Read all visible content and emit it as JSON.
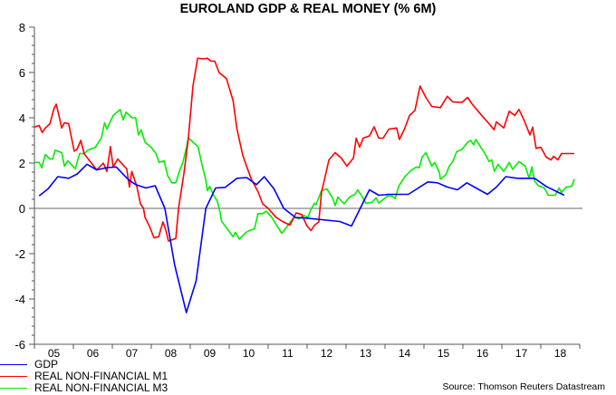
{
  "chart_data": {
    "type": "line",
    "title": "EUROLAND GDP & REAL MONEY (% 6M)",
    "xlabel": "",
    "ylabel": "",
    "ylim": [
      -6,
      8
    ],
    "xlim": [
      2005,
      2019
    ],
    "yticks": [
      "8",
      "6",
      "4",
      "2",
      "0",
      "-2",
      "-4",
      "-6"
    ],
    "ytick_values": [
      8,
      6,
      4,
      2,
      0,
      -2,
      -4,
      -6
    ],
    "xtick_labels": [
      "05",
      "06",
      "07",
      "08",
      "09",
      "10",
      "11",
      "12",
      "13",
      "14",
      "15",
      "16",
      "17",
      "18"
    ],
    "grid": false,
    "zero_line": true,
    "legend_position": "bottom-left",
    "source": "Source: Thomson Reuters Datastream",
    "series": [
      {
        "name": "GDP",
        "color": "#0000ff",
        "x": [
          2005.12,
          2005.35,
          2005.6,
          2005.88,
          2006.1,
          2006.35,
          2006.6,
          2006.86,
          2007.1,
          2007.4,
          2007.6,
          2007.86,
          2008.1,
          2008.35,
          2008.6,
          2008.9,
          2009.15,
          2009.4,
          2009.65,
          2009.9,
          2010.2,
          2010.45,
          2010.7,
          2010.9,
          2011.15,
          2011.4,
          2011.7,
          2012.0,
          2012.84,
          2013.14,
          2013.6,
          2013.84,
          2014.1,
          2014.6,
          2015.1,
          2015.35,
          2015.6,
          2015.86,
          2016.1,
          2016.63,
          2016.86,
          2017.1,
          2017.4,
          2017.84,
          2018.14,
          2018.6
        ],
        "y": [
          0.55,
          0.86,
          1.4,
          1.33,
          1.52,
          1.95,
          1.7,
          1.8,
          1.83,
          1.29,
          1.05,
          0.9,
          1.0,
          0.0,
          -2.5,
          -4.6,
          -3.2,
          0.0,
          0.9,
          0.93,
          1.33,
          1.36,
          1.05,
          1.4,
          0.86,
          0.0,
          -0.4,
          -0.43,
          -0.58,
          -0.78,
          0.82,
          0.58,
          0.62,
          0.62,
          1.17,
          1.13,
          0.94,
          0.82,
          1.13,
          0.62,
          0.94,
          1.4,
          1.33,
          1.33,
          0.97,
          0.58
        ]
      },
      {
        "name": "REAL NON-FINANCIAL M1",
        "color": "#ff0000",
        "x": [
          2005.0,
          2005.12,
          2005.2,
          2005.28,
          2005.4,
          2005.5,
          2005.56,
          2005.63,
          2005.7,
          2005.77,
          2005.88,
          2006.02,
          2006.09,
          2006.19,
          2006.28,
          2006.4,
          2006.6,
          2006.77,
          2006.86,
          2006.95,
          2007.02,
          2007.14,
          2007.3,
          2007.37,
          2007.44,
          2007.5,
          2007.63,
          2007.72,
          2007.8,
          2007.84,
          2007.95,
          2008.07,
          2008.19,
          2008.3,
          2008.37,
          2008.44,
          2008.63,
          2008.7,
          2008.84,
          2008.95,
          2009.07,
          2009.19,
          2009.35,
          2009.44,
          2009.53,
          2009.63,
          2009.74,
          2009.93,
          2010.1,
          2010.2,
          2010.35,
          2010.47,
          2010.58,
          2010.74,
          2010.86,
          2011.0,
          2011.2,
          2011.37,
          2011.56,
          2011.72,
          2011.86,
          2012.0,
          2012.1,
          2012.19,
          2012.3,
          2012.37,
          2012.56,
          2012.72,
          2012.88,
          2013.02,
          2013.19,
          2013.26,
          2013.35,
          2013.44,
          2013.6,
          2013.72,
          2013.84,
          2013.95,
          2014.1,
          2014.3,
          2014.37,
          2014.5,
          2014.63,
          2014.77,
          2014.9,
          2015.05,
          2015.2,
          2015.42,
          2015.6,
          2015.74,
          2015.98,
          2016.12,
          2016.24,
          2016.47,
          2016.63,
          2016.8,
          2016.86,
          2017.05,
          2017.19,
          2017.33,
          2017.44,
          2017.58,
          2017.72,
          2017.79,
          2017.88,
          2018.0,
          2018.14,
          2018.26,
          2018.33,
          2018.44,
          2018.53,
          2018.7,
          2018.86
        ],
        "y": [
          3.59,
          3.66,
          3.35,
          3.55,
          3.74,
          4.4,
          4.6,
          4.1,
          3.55,
          3.78,
          3.74,
          2.53,
          2.6,
          3.0,
          2.4,
          2.14,
          1.7,
          2.0,
          1.63,
          2.73,
          1.83,
          2.18,
          1.87,
          1.75,
          0.94,
          1.63,
          0.97,
          0.2,
          0.0,
          -0.4,
          -0.78,
          -1.3,
          -1.25,
          -0.6,
          -0.94,
          -1.44,
          -1.33,
          0.0,
          1.56,
          3.08,
          5.4,
          6.63,
          6.6,
          6.63,
          6.5,
          6.5,
          6.0,
          5.73,
          4.76,
          3.5,
          2.34,
          1.75,
          1.25,
          0.74,
          0.2,
          0.0,
          -0.39,
          -0.58,
          -0.74,
          -0.2,
          -0.27,
          -0.78,
          -0.98,
          -0.74,
          -0.6,
          0.7,
          2.14,
          2.46,
          2.22,
          1.87,
          2.22,
          3.1,
          2.7,
          3.1,
          3.2,
          3.6,
          3.1,
          3.1,
          3.5,
          3.55,
          3.04,
          3.5,
          4.1,
          4.33,
          5.4,
          4.9,
          4.5,
          4.45,
          4.95,
          4.7,
          4.68,
          4.9,
          4.6,
          4.13,
          3.82,
          3.47,
          3.82,
          3.55,
          4.29,
          4.1,
          4.37,
          3.86,
          3.24,
          3.59,
          2.65,
          2.7,
          2.26,
          2.14,
          2.3,
          2.14,
          2.42,
          2.42,
          2.42
        ]
      },
      {
        "name": "REAL NON-FINANCIAL M3",
        "color": "#00ee00",
        "x": [
          2005.0,
          2005.12,
          2005.19,
          2005.28,
          2005.4,
          2005.47,
          2005.53,
          2005.7,
          2005.77,
          2005.86,
          2006.05,
          2006.16,
          2006.28,
          2006.37,
          2006.56,
          2006.72,
          2006.8,
          2006.86,
          2007.02,
          2007.2,
          2007.28,
          2007.35,
          2007.51,
          2007.6,
          2007.67,
          2007.74,
          2007.84,
          2008.0,
          2008.12,
          2008.2,
          2008.33,
          2008.42,
          2008.53,
          2008.63,
          2008.72,
          2008.81,
          2008.91,
          2008.95,
          2009.07,
          2009.2,
          2009.3,
          2009.4,
          2009.44,
          2009.5,
          2009.6,
          2009.7,
          2009.77,
          2009.8,
          2009.93,
          2010.1,
          2010.16,
          2010.26,
          2010.44,
          2010.53,
          2010.65,
          2010.74,
          2010.86,
          2010.95,
          2011.09,
          2011.2,
          2011.35,
          2011.4,
          2011.56,
          2011.67,
          2011.79,
          2011.91,
          2012.02,
          2012.1,
          2012.19,
          2012.23,
          2012.37,
          2012.51,
          2012.65,
          2012.72,
          2012.79,
          2012.95,
          2013.09,
          2013.23,
          2013.3,
          2013.42,
          2013.51,
          2013.67,
          2013.77,
          2013.84,
          2013.95,
          2014.07,
          2014.19,
          2014.26,
          2014.35,
          2014.51,
          2014.67,
          2014.81,
          2014.88,
          2014.95,
          2015.05,
          2015.2,
          2015.28,
          2015.4,
          2015.42,
          2015.56,
          2015.65,
          2015.74,
          2015.84,
          2015.98,
          2016.12,
          2016.2,
          2016.28,
          2016.33,
          2016.51,
          2016.58,
          2016.67,
          2016.74,
          2016.81,
          2016.9,
          2017.05,
          2017.19,
          2017.28,
          2017.44,
          2017.6,
          2017.7,
          2017.77,
          2017.84,
          2017.93,
          2018.09,
          2018.19,
          2018.37,
          2018.47,
          2018.53,
          2018.65,
          2018.79,
          2018.86
        ],
        "y": [
          2.03,
          2.03,
          1.79,
          2.38,
          2.18,
          2.18,
          2.57,
          2.46,
          1.87,
          2.1,
          1.75,
          2.42,
          2.42,
          2.57,
          2.69,
          3.12,
          3.78,
          3.5,
          4.1,
          4.37,
          3.9,
          4.25,
          4.0,
          4.0,
          3.24,
          3.47,
          2.92,
          2.69,
          2.42,
          2.03,
          2.1,
          1.44,
          1.13,
          1.13,
          1.63,
          2.03,
          2.73,
          3.12,
          2.92,
          2.73,
          1.95,
          1.25,
          0.78,
          0.97,
          0.58,
          0.3,
          -0.2,
          -0.55,
          -0.86,
          -1.25,
          -1.05,
          -1.36,
          -1.05,
          -0.97,
          -0.9,
          -0.23,
          -0.23,
          -0.12,
          -0.39,
          -0.7,
          -1.1,
          -1.0,
          -0.62,
          -0.39,
          -0.47,
          -0.31,
          -0.39,
          -0.04,
          0.23,
          0.16,
          0.78,
          0.86,
          0.47,
          0.12,
          0.5,
          0.2,
          0.5,
          0.62,
          0.82,
          0.5,
          0.23,
          0.27,
          0.47,
          0.23,
          0.39,
          0.55,
          0.55,
          0.43,
          0.97,
          1.4,
          1.68,
          1.83,
          1.79,
          2.26,
          2.46,
          1.87,
          2.03,
          1.56,
          1.29,
          1.48,
          1.87,
          2.07,
          2.5,
          2.61,
          2.92,
          3.0,
          2.8,
          3.04,
          2.57,
          2.38,
          2.07,
          2.14,
          1.63,
          1.95,
          1.63,
          2.03,
          1.72,
          2.07,
          1.87,
          1.33,
          1.83,
          1.21,
          1.01,
          0.9,
          0.58,
          0.58,
          0.9,
          0.7,
          0.94,
          0.97,
          1.29
        ]
      }
    ]
  }
}
